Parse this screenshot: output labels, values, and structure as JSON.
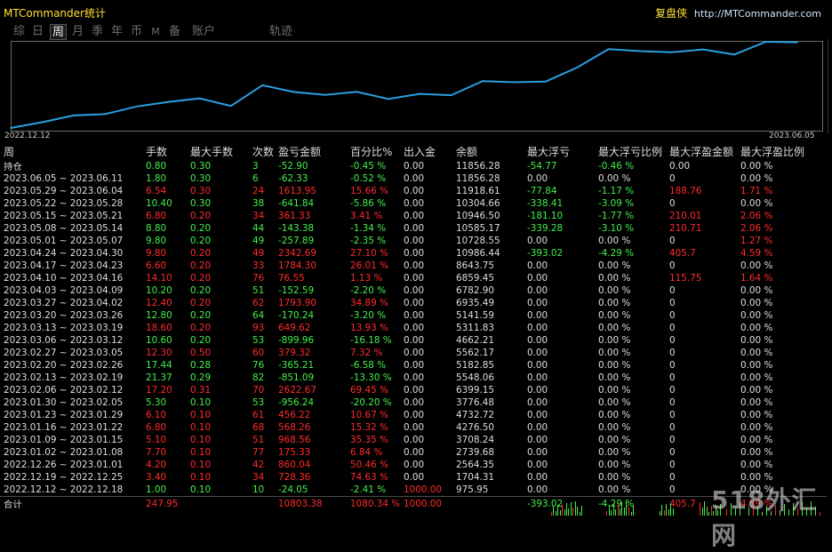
{
  "app": {
    "title": "MTCommander统计",
    "brand_cn": "复盘侠",
    "brand_url": "http://MTCommander.com"
  },
  "tabs": [
    {
      "label": "综",
      "active": false
    },
    {
      "label": "日",
      "active": false
    },
    {
      "label": "周",
      "active": true
    },
    {
      "label": "月",
      "active": false
    },
    {
      "label": "季",
      "active": false
    },
    {
      "label": "年",
      "active": false
    },
    {
      "label": "币",
      "active": false
    },
    {
      "label": "M",
      "active": false
    },
    {
      "label": "备",
      "active": false
    },
    {
      "label": "账户",
      "active": false
    },
    {
      "label": "轨迹",
      "active": false
    }
  ],
  "chart_data": {
    "type": "line",
    "title": "",
    "x_start_label": "2022.12.12",
    "x_end_label": "2023.06.05",
    "line_color": "#2a9fe0",
    "x": [
      "2022.12.12",
      "2022.12.19",
      "2022.12.26",
      "2023.01.02",
      "2023.01.09",
      "2023.01.16",
      "2023.01.23",
      "2023.01.30",
      "2023.02.06",
      "2023.02.13",
      "2023.02.20",
      "2023.02.27",
      "2023.03.06",
      "2023.03.13",
      "2023.03.20",
      "2023.03.27",
      "2023.04.03",
      "2023.04.10",
      "2023.04.17",
      "2023.04.24",
      "2023.05.01",
      "2023.05.08",
      "2023.05.15",
      "2023.05.22",
      "2023.05.29",
      "2023.06.05"
    ],
    "series": [
      {
        "values": [
          975.95,
          1704.31,
          2564.35,
          2739.68,
          3708.24,
          4276.5,
          4732.72,
          3776.48,
          6399.15,
          5548.06,
          5182.85,
          5562.17,
          4662.21,
          5311.83,
          5141.59,
          6935.49,
          6782.9,
          6859.45,
          8643.75,
          10986.44,
          10728.55,
          10585.17,
          10946.5,
          10304.66,
          11918.61,
          11856.28
        ]
      }
    ]
  },
  "table": {
    "headers": [
      "周",
      "手数",
      "最大手数",
      "次数",
      "盈亏金额",
      "百分比%",
      "出入金",
      "余额",
      "最大浮亏",
      "最大浮亏比例",
      "最大浮盈金额",
      "最大浮盈比例"
    ],
    "holding": {
      "cells": [
        "持仓",
        "0.80",
        "0.30",
        "3",
        "-52.90",
        "-0.45 %",
        "0.00",
        "11856.28",
        "-54.77",
        "-0.46 %",
        "0.00",
        "0.00 %"
      ],
      "colors": [
        "white",
        "green",
        "green",
        "green",
        "green",
        "green",
        "white",
        "white",
        "green",
        "green",
        "white",
        "white"
      ]
    },
    "rows": [
      {
        "cells": [
          "2023.06.05 ~ 2023.06.11",
          "1.80",
          "0.30",
          "6",
          "-62.33",
          "-0.52 %",
          "0.00",
          "11856.28",
          "0.00",
          "0.00 %",
          "0",
          "0.00 %"
        ],
        "colors": [
          "white",
          "green",
          "green",
          "green",
          "green",
          "green",
          "white",
          "white",
          "white",
          "white",
          "white",
          "white"
        ]
      },
      {
        "cells": [
          "2023.05.29 ~ 2023.06.04",
          "6.54",
          "0.30",
          "24",
          "1613.95",
          "15.66 %",
          "0.00",
          "11918.61",
          "-77.84",
          "-1.17 %",
          "188.76",
          "1.71 %"
        ],
        "colors": [
          "white",
          "red",
          "red",
          "red",
          "red",
          "red",
          "white",
          "white",
          "green",
          "green",
          "red",
          "red"
        ]
      },
      {
        "cells": [
          "2023.05.22 ~ 2023.05.28",
          "10.40",
          "0.30",
          "38",
          "-641.84",
          "-5.86 %",
          "0.00",
          "10304.66",
          "-338.41",
          "-3.09 %",
          "0",
          "0.00 %"
        ],
        "colors": [
          "white",
          "green",
          "green",
          "green",
          "green",
          "green",
          "white",
          "white",
          "green",
          "green",
          "white",
          "white"
        ]
      },
      {
        "cells": [
          "2023.05.15 ~ 2023.05.21",
          "6.80",
          "0.20",
          "34",
          "361.33",
          "3.41 %",
          "0.00",
          "10946.50",
          "-181.10",
          "-1.77 %",
          "210.01",
          "2.06 %"
        ],
        "colors": [
          "white",
          "red",
          "red",
          "red",
          "red",
          "red",
          "white",
          "white",
          "green",
          "green",
          "red",
          "red"
        ]
      },
      {
        "cells": [
          "2023.05.08 ~ 2023.05.14",
          "8.80",
          "0.20",
          "44",
          "-143.38",
          "-1.34 %",
          "0.00",
          "10585.17",
          "-339.28",
          "-3.10 %",
          "210.71",
          "2.06 %"
        ],
        "colors": [
          "white",
          "green",
          "green",
          "green",
          "green",
          "green",
          "white",
          "white",
          "green",
          "green",
          "red",
          "red"
        ]
      },
      {
        "cells": [
          "2023.05.01 ~ 2023.05.07",
          "9.80",
          "0.20",
          "49",
          "-257.89",
          "-2.35 %",
          "0.00",
          "10728.55",
          "0.00",
          "0.00 %",
          "0",
          "1.27 %"
        ],
        "colors": [
          "white",
          "green",
          "green",
          "green",
          "green",
          "green",
          "white",
          "white",
          "white",
          "white",
          "white",
          "red"
        ]
      },
      {
        "cells": [
          "2023.04.24 ~ 2023.04.30",
          "9.80",
          "0.20",
          "49",
          "2342.69",
          "27.10 %",
          "0.00",
          "10986.44",
          "-393.02",
          "-4.29 %",
          "405.7",
          "4.59 %"
        ],
        "colors": [
          "white",
          "red",
          "red",
          "red",
          "red",
          "red",
          "white",
          "white",
          "green",
          "green",
          "red",
          "red"
        ]
      },
      {
        "cells": [
          "2023.04.17 ~ 2023.04.23",
          "6.60",
          "0.20",
          "33",
          "1784.30",
          "26.01 %",
          "0.00",
          "8643.75",
          "0.00",
          "0.00 %",
          "0",
          "0.00 %"
        ],
        "colors": [
          "white",
          "red",
          "red",
          "red",
          "red",
          "red",
          "white",
          "white",
          "white",
          "white",
          "white",
          "white"
        ]
      },
      {
        "cells": [
          "2023.04.10 ~ 2023.04.16",
          "14.10",
          "0.20",
          "76",
          "76.55",
          "1.13 %",
          "0.00",
          "6859.45",
          "0.00",
          "0.00 %",
          "115.75",
          "1.64 %"
        ],
        "colors": [
          "white",
          "red",
          "red",
          "red",
          "red",
          "red",
          "white",
          "white",
          "white",
          "white",
          "red",
          "red"
        ]
      },
      {
        "cells": [
          "2023.04.03 ~ 2023.04.09",
          "10.20",
          "0.20",
          "51",
          "-152.59",
          "-2.20 %",
          "0.00",
          "6782.90",
          "0.00",
          "0.00 %",
          "0",
          "0.00 %"
        ],
        "colors": [
          "white",
          "green",
          "green",
          "green",
          "green",
          "green",
          "white",
          "white",
          "white",
          "white",
          "white",
          "white"
        ]
      },
      {
        "cells": [
          "2023.03.27 ~ 2023.04.02",
          "12.40",
          "0.20",
          "62",
          "1793.90",
          "34.89 %",
          "0.00",
          "6935.49",
          "0.00",
          "0.00 %",
          "0",
          "0.00 %"
        ],
        "colors": [
          "white",
          "red",
          "red",
          "red",
          "red",
          "red",
          "white",
          "white",
          "white",
          "white",
          "white",
          "white"
        ]
      },
      {
        "cells": [
          "2023.03.20 ~ 2023.03.26",
          "12.80",
          "0.20",
          "64",
          "-170.24",
          "-3.20 %",
          "0.00",
          "5141.59",
          "0.00",
          "0.00 %",
          "0",
          "0.00 %"
        ],
        "colors": [
          "white",
          "green",
          "green",
          "green",
          "green",
          "green",
          "white",
          "white",
          "white",
          "white",
          "white",
          "white"
        ]
      },
      {
        "cells": [
          "2023.03.13 ~ 2023.03.19",
          "18.60",
          "0.20",
          "93",
          "649.62",
          "13.93 %",
          "0.00",
          "5311.83",
          "0.00",
          "0.00 %",
          "0",
          "0.00 %"
        ],
        "colors": [
          "white",
          "red",
          "red",
          "red",
          "red",
          "red",
          "white",
          "white",
          "white",
          "white",
          "white",
          "white"
        ]
      },
      {
        "cells": [
          "2023.03.06 ~ 2023.03.12",
          "10.60",
          "0.20",
          "53",
          "-899.96",
          "-16.18 %",
          "0.00",
          "4662.21",
          "0.00",
          "0.00 %",
          "0",
          "0.00 %"
        ],
        "colors": [
          "white",
          "green",
          "green",
          "green",
          "green",
          "green",
          "white",
          "white",
          "white",
          "white",
          "white",
          "white"
        ]
      },
      {
        "cells": [
          "2023.02.27 ~ 2023.03.05",
          "12.30",
          "0.50",
          "60",
          "379.32",
          "7.32 %",
          "0.00",
          "5562.17",
          "0.00",
          "0.00 %",
          "0",
          "0.00 %"
        ],
        "colors": [
          "white",
          "red",
          "red",
          "red",
          "red",
          "red",
          "white",
          "white",
          "white",
          "white",
          "white",
          "white"
        ]
      },
      {
        "cells": [
          "2023.02.20 ~ 2023.02.26",
          "17.44",
          "0.28",
          "76",
          "-365.21",
          "-6.58 %",
          "0.00",
          "5182.85",
          "0.00",
          "0.00 %",
          "0",
          "0.00 %"
        ],
        "colors": [
          "white",
          "green",
          "green",
          "green",
          "green",
          "green",
          "white",
          "white",
          "white",
          "white",
          "white",
          "white"
        ]
      },
      {
        "cells": [
          "2023.02.13 ~ 2023.02.19",
          "21.37",
          "0.29",
          "82",
          "-851.09",
          "-13.30 %",
          "0.00",
          "5548.06",
          "0.00",
          "0.00 %",
          "0",
          "0.00 %"
        ],
        "colors": [
          "white",
          "green",
          "green",
          "green",
          "green",
          "green",
          "white",
          "white",
          "white",
          "white",
          "white",
          "white"
        ]
      },
      {
        "cells": [
          "2023.02.06 ~ 2023.02.12",
          "17.20",
          "0.31",
          "70",
          "2622.67",
          "69.45 %",
          "0.00",
          "6399.15",
          "0.00",
          "0.00 %",
          "0",
          "0.00 %"
        ],
        "colors": [
          "white",
          "red",
          "red",
          "red",
          "red",
          "red",
          "white",
          "white",
          "white",
          "white",
          "white",
          "white"
        ]
      },
      {
        "cells": [
          "2023.01.30 ~ 2023.02.05",
          "5.30",
          "0.10",
          "53",
          "-956.24",
          "-20.20 %",
          "0.00",
          "3776.48",
          "0.00",
          "0.00 %",
          "0",
          "0.00 %"
        ],
        "colors": [
          "white",
          "green",
          "green",
          "green",
          "green",
          "green",
          "white",
          "white",
          "white",
          "white",
          "white",
          "white"
        ]
      },
      {
        "cells": [
          "2023.01.23 ~ 2023.01.29",
          "6.10",
          "0.10",
          "61",
          "456.22",
          "10.67 %",
          "0.00",
          "4732.72",
          "0.00",
          "0.00 %",
          "0",
          "0.00 %"
        ],
        "colors": [
          "white",
          "red",
          "red",
          "red",
          "red",
          "red",
          "white",
          "white",
          "white",
          "white",
          "white",
          "white"
        ]
      },
      {
        "cells": [
          "2023.01.16 ~ 2023.01.22",
          "6.80",
          "0.10",
          "68",
          "568.26",
          "15.32 %",
          "0.00",
          "4276.50",
          "0.00",
          "0.00 %",
          "0",
          "0.00 %"
        ],
        "colors": [
          "white",
          "red",
          "red",
          "red",
          "red",
          "red",
          "white",
          "white",
          "white",
          "white",
          "white",
          "white"
        ]
      },
      {
        "cells": [
          "2023.01.09 ~ 2023.01.15",
          "5.10",
          "0.10",
          "51",
          "968.56",
          "35.35 %",
          "0.00",
          "3708.24",
          "0.00",
          "0.00 %",
          "0",
          "0.00 %"
        ],
        "colors": [
          "white",
          "red",
          "red",
          "red",
          "red",
          "red",
          "white",
          "white",
          "white",
          "white",
          "white",
          "white"
        ]
      },
      {
        "cells": [
          "2023.01.02 ~ 2023.01.08",
          "7.70",
          "0.10",
          "77",
          "175.33",
          "6.84 %",
          "0.00",
          "2739.68",
          "0.00",
          "0.00 %",
          "0",
          "0.00 %"
        ],
        "colors": [
          "white",
          "red",
          "red",
          "red",
          "red",
          "red",
          "white",
          "white",
          "white",
          "white",
          "white",
          "white"
        ]
      },
      {
        "cells": [
          "2022.12.26 ~ 2023.01.01",
          "4.20",
          "0.10",
          "42",
          "860.04",
          "50.46 %",
          "0.00",
          "2564.35",
          "0.00",
          "0.00 %",
          "0",
          "0.00 %"
        ],
        "colors": [
          "white",
          "red",
          "red",
          "red",
          "red",
          "red",
          "white",
          "white",
          "white",
          "white",
          "white",
          "white"
        ]
      },
      {
        "cells": [
          "2022.12.19 ~ 2022.12.25",
          "3.40",
          "0.10",
          "34",
          "728.36",
          "74.63 %",
          "0.00",
          "1704.31",
          "0.00",
          "0.00 %",
          "0",
          "0.00 %"
        ],
        "colors": [
          "white",
          "red",
          "red",
          "red",
          "red",
          "red",
          "white",
          "white",
          "white",
          "white",
          "white",
          "white"
        ]
      },
      {
        "cells": [
          "2022.12.12 ~ 2022.12.18",
          "1.00",
          "0.10",
          "10",
          "-24.05",
          "-2.41 %",
          "1000.00",
          "975.95",
          "0.00",
          "0.00 %",
          "0",
          "0.00 %"
        ],
        "colors": [
          "white",
          "green",
          "green",
          "green",
          "green",
          "green",
          "red",
          "white",
          "white",
          "white",
          "white",
          "white"
        ]
      }
    ],
    "totals": {
      "cells": [
        "合计",
        "247.95",
        "",
        "",
        "10803.38",
        "1080.34 %",
        "1000.00",
        "",
        "-393.02",
        "-4.29 %",
        "405.7",
        "4.59 %"
      ],
      "colors": [
        "white",
        "red",
        "white",
        "white",
        "red",
        "red",
        "red",
        "white",
        "green",
        "green",
        "red",
        "red"
      ]
    }
  },
  "watermark": "518外汇网",
  "colors": {
    "green": "#43f04a",
    "red": "#ff2a2a",
    "accent_line": "#2a9fe0",
    "title_yellow": "#ffe033"
  }
}
